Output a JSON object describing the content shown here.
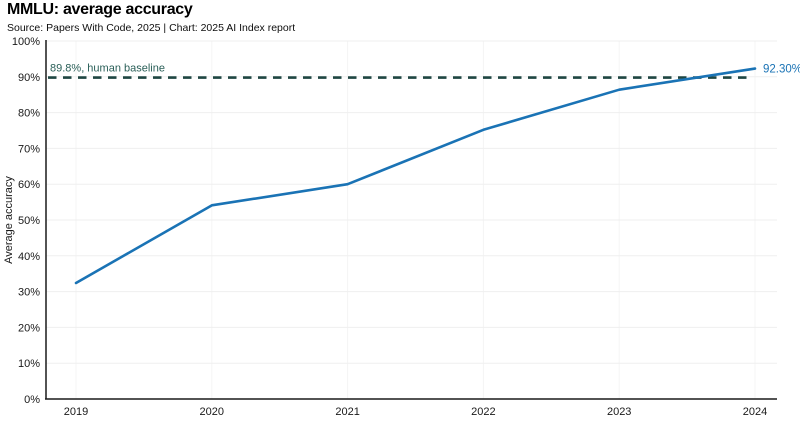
{
  "header": {
    "title": "MMLU: average accuracy",
    "subtitle": "Source: Papers With Code, 2025 | Chart: 2025 AI Index report"
  },
  "chart_data": {
    "type": "line",
    "title": "MMLU: average accuracy",
    "subtitle": "Source: Papers With Code, 2025 | Chart: 2025 AI Index report",
    "x": [
      "2019",
      "2020",
      "2021",
      "2022",
      "2023",
      "2024"
    ],
    "series": [
      {
        "name": "Average accuracy",
        "values": [
          32.4,
          54.1,
          60.0,
          75.2,
          86.4,
          92.3
        ]
      }
    ],
    "xlabel": "",
    "ylabel": "Average accuracy",
    "ylim": [
      0,
      100
    ],
    "ytick_step": 10,
    "ytick_suffix": "%",
    "grid": true,
    "legend_position": "none",
    "baseline": {
      "value": 89.8,
      "label": "89.8%, human baseline"
    },
    "end_label": "92.30%",
    "colors": {
      "line": "#1a73b5",
      "baseline_line": "#1e4642",
      "baseline_text": "#2a5f58",
      "end_label": "#1a73b5",
      "axis": "#1a1a1a",
      "grid_h": "#efefef",
      "grid_v": "#f4f4f4"
    }
  }
}
